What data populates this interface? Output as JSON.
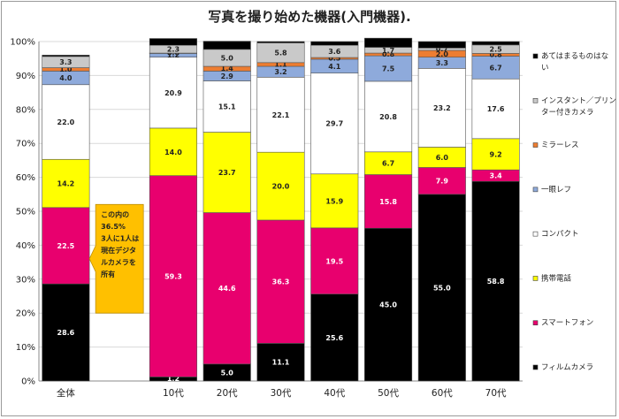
{
  "chart_data": {
    "type": "bar",
    "stacked": true,
    "title": "写真を撮り始めた機器(入門機器).",
    "ylim": [
      0,
      100
    ],
    "yticks": [
      "0%",
      "10%",
      "20%",
      "30%",
      "40%",
      "50%",
      "60%",
      "70%",
      "80%",
      "90%",
      "100%"
    ],
    "categories": [
      "全体",
      "",
      "10代",
      "20代",
      "30代",
      "40代",
      "50代",
      "60代",
      "70代"
    ],
    "series": [
      {
        "name": "フィルムカメラ",
        "color": "#000000",
        "values": [
          28.6,
          null,
          1.2,
          5.0,
          11.1,
          25.6,
          45.0,
          55.0,
          58.8
        ],
        "labels": [
          "28.6",
          "",
          "1.2",
          "5.0",
          "11.1",
          "25.6",
          "45.0",
          "55.0",
          "58.8"
        ]
      },
      {
        "name": "スマートフォン",
        "color": "#e8006e",
        "values": [
          22.5,
          null,
          59.3,
          44.6,
          36.3,
          19.5,
          15.8,
          7.9,
          3.4
        ],
        "labels": [
          "22.5",
          "",
          "59.3",
          "44.6",
          "36.3",
          "19.5",
          "15.8",
          "7.9",
          "3.4"
        ]
      },
      {
        "name": "携帯電話",
        "color": "#ffff00",
        "values": [
          14.2,
          null,
          14.0,
          23.7,
          20.0,
          15.9,
          6.7,
          6.0,
          9.2
        ],
        "labels": [
          "14.2",
          "",
          "14.0",
          "23.7",
          "20.0",
          "15.9",
          "6.7",
          "6.0",
          "9.2"
        ]
      },
      {
        "name": "コンパクト",
        "color": "#ffffff",
        "values": [
          22.0,
          null,
          20.9,
          15.1,
          22.1,
          29.7,
          20.8,
          23.2,
          17.6
        ],
        "labels": [
          "22.0",
          "",
          "20.9",
          "15.1",
          "22.1",
          "29.7",
          "20.8",
          "23.2",
          "17.6"
        ]
      },
      {
        "name": "一眼レフ",
        "color": "#8eaadb",
        "values": [
          4.0,
          null,
          1.2,
          2.9,
          3.2,
          4.1,
          7.5,
          3.3,
          6.7
        ],
        "labels": [
          "4.0",
          "",
          "1.2",
          "2.9",
          "3.2",
          "4.1",
          "7.5",
          "3.3",
          "6.7"
        ]
      },
      {
        "name": "ミラーレス",
        "color": "#ed7d31",
        "values": [
          1.0,
          null,
          0.0,
          1.4,
          1.1,
          0.5,
          0.8,
          2.0,
          0.8
        ],
        "labels": [
          "1.0",
          "",
          "0.0",
          "1.4",
          "1.1",
          "0.5",
          "0.8",
          "2.0",
          "0.8"
        ]
      },
      {
        "name": "インスタント／プリンター付きカメラ",
        "color": "#c9c9c9",
        "values": [
          3.3,
          null,
          2.3,
          5.0,
          5.8,
          3.6,
          1.7,
          0.7,
          2.5
        ],
        "labels": [
          "3.3",
          "",
          "2.3",
          "5.0",
          "5.8",
          "3.6",
          "1.7",
          "0.7",
          "2.5"
        ]
      },
      {
        "name": "あてはまるものはない",
        "color": "#000000",
        "values": [
          0.4,
          null,
          2.0,
          2.4,
          0.4,
          1.1,
          2.7,
          1.9,
          1.0
        ],
        "labels": [
          "",
          "",
          "",
          "",
          "",
          "",
          "",
          "",
          ""
        ]
      }
    ],
    "legend": [
      "あてはまるものはな|い",
      "インスタント／プリン|ター付きカメラ",
      "ミラーレス",
      "一眼レフ",
      "コンパクト",
      "携帯電話",
      "スマートフォン",
      "フィルムカメラ"
    ],
    "legend_colors": [
      "#000000",
      "#c9c9c9",
      "#ed7d31",
      "#8eaadb",
      "#ffffff",
      "#ffff00",
      "#e8006e",
      "#000000"
    ],
    "callout": [
      "この内の",
      "36.5%",
      "3人に1人は",
      "現在デジタ",
      "ルカメラを",
      "所有"
    ],
    "callout_color": "#ffc000"
  }
}
